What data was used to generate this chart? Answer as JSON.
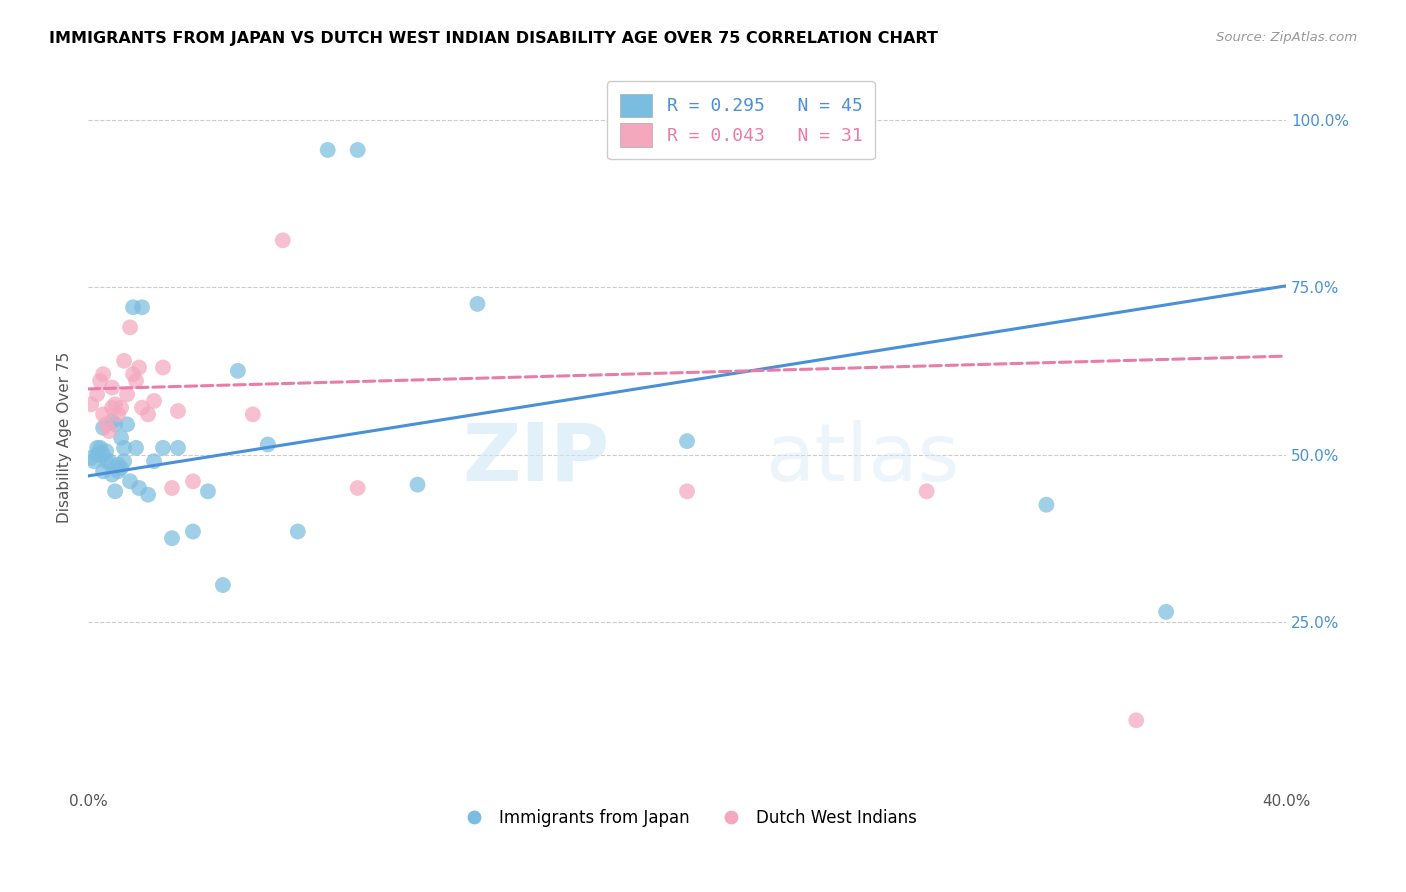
{
  "title": "IMMIGRANTS FROM JAPAN VS DUTCH WEST INDIAN DISABILITY AGE OVER 75 CORRELATION CHART",
  "source": "Source: ZipAtlas.com",
  "ylabel": "Disability Age Over 75",
  "x_min": 0.0,
  "x_max": 0.4,
  "y_min": 0.0,
  "y_max": 1.05,
  "x_ticks": [
    0.0,
    0.05,
    0.1,
    0.15,
    0.2,
    0.25,
    0.3,
    0.35,
    0.4
  ],
  "y_ticks": [
    0.25,
    0.5,
    0.75,
    1.0
  ],
  "y_tick_labels": [
    "25.0%",
    "50.0%",
    "75.0%",
    "100.0%"
  ],
  "japan_R": 0.295,
  "japan_N": 45,
  "dwi_R": 0.043,
  "dwi_N": 31,
  "japan_color": "#7BBDE0",
  "dwi_color": "#F4A8BE",
  "japan_line_color": "#4A90D9",
  "dwi_line_color": "#E87DA8",
  "watermark_zip": "ZIP",
  "watermark_atlas": "atlas",
  "japan_x": [
    0.001,
    0.002,
    0.003,
    0.003,
    0.004,
    0.005,
    0.005,
    0.005,
    0.006,
    0.006,
    0.007,
    0.008,
    0.008,
    0.009,
    0.009,
    0.01,
    0.01,
    0.011,
    0.011,
    0.012,
    0.012,
    0.013,
    0.014,
    0.015,
    0.016,
    0.017,
    0.018,
    0.02,
    0.022,
    0.025,
    0.028,
    0.03,
    0.035,
    0.04,
    0.045,
    0.05,
    0.06,
    0.07,
    0.08,
    0.09,
    0.11,
    0.13,
    0.2,
    0.32,
    0.36
  ],
  "japan_y": [
    0.495,
    0.49,
    0.51,
    0.5,
    0.51,
    0.54,
    0.475,
    0.5,
    0.505,
    0.49,
    0.49,
    0.47,
    0.55,
    0.545,
    0.445,
    0.485,
    0.475,
    0.48,
    0.525,
    0.49,
    0.51,
    0.545,
    0.46,
    0.72,
    0.51,
    0.45,
    0.72,
    0.44,
    0.49,
    0.51,
    0.375,
    0.51,
    0.385,
    0.445,
    0.305,
    0.625,
    0.515,
    0.385,
    0.955,
    0.955,
    0.455,
    0.725,
    0.52,
    0.425,
    0.265
  ],
  "dwi_x": [
    0.001,
    0.003,
    0.004,
    0.005,
    0.005,
    0.006,
    0.007,
    0.008,
    0.008,
    0.009,
    0.01,
    0.011,
    0.012,
    0.013,
    0.014,
    0.015,
    0.016,
    0.017,
    0.018,
    0.02,
    0.022,
    0.025,
    0.028,
    0.03,
    0.035,
    0.055,
    0.065,
    0.09,
    0.2,
    0.28,
    0.35
  ],
  "dwi_y": [
    0.575,
    0.59,
    0.61,
    0.56,
    0.62,
    0.545,
    0.535,
    0.57,
    0.6,
    0.575,
    0.56,
    0.57,
    0.64,
    0.59,
    0.69,
    0.62,
    0.61,
    0.63,
    0.57,
    0.56,
    0.58,
    0.63,
    0.45,
    0.565,
    0.46,
    0.56,
    0.82,
    0.45,
    0.445,
    0.445,
    0.103
  ],
  "japan_line_x0": 0.0,
  "japan_line_y0": 0.468,
  "japan_line_x1": 0.4,
  "japan_line_y1": 0.752,
  "dwi_line_x0": 0.0,
  "dwi_line_y0": 0.598,
  "dwi_line_x1": 0.4,
  "dwi_line_y1": 0.647
}
